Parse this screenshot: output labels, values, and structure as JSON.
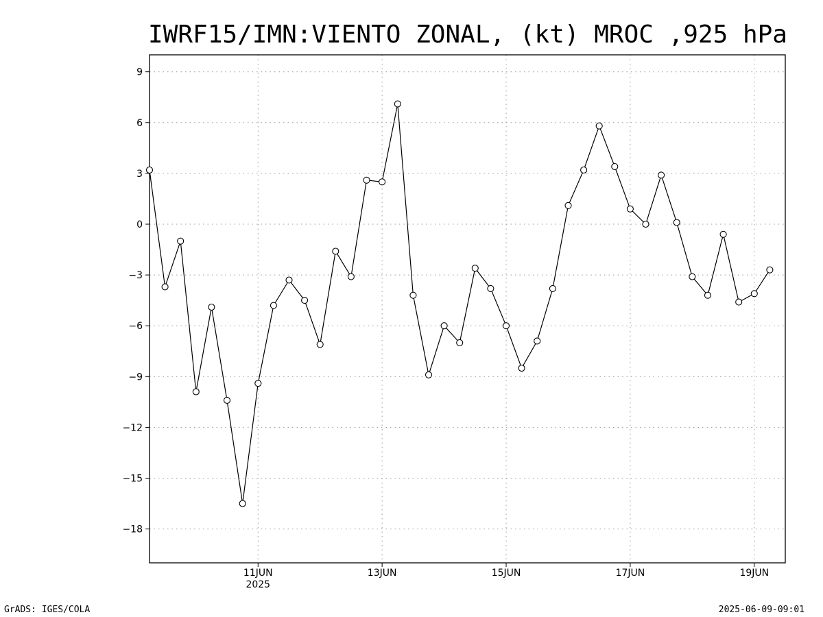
{
  "chart_data": {
    "type": "line",
    "title": "IWRF15/IMN:VIENTO ZONAL, (kt) MROC ,925 hPa",
    "xlabel": "",
    "ylabel": "",
    "x_unit": "hours since 2025-06-09 06:00",
    "x_start": "2025-06-09 06:00",
    "x_step_hours": 6,
    "xlim": [
      0,
      246
    ],
    "ylim": [
      -20,
      10
    ],
    "y_ticks": [
      9,
      6,
      3,
      0,
      -3,
      -6,
      -9,
      -12,
      -15,
      -18
    ],
    "x_ticks": [
      {
        "x": 42,
        "label": "11JUN",
        "sublabel": "2025"
      },
      {
        "x": 90,
        "label": "13JUN",
        "sublabel": ""
      },
      {
        "x": 138,
        "label": "15JUN",
        "sublabel": ""
      },
      {
        "x": 186,
        "label": "17JUN",
        "sublabel": ""
      },
      {
        "x": 234,
        "label": "19JUN",
        "sublabel": ""
      }
    ],
    "grid": true,
    "marker": "open-circle",
    "series": [
      {
        "values": [
          3.2,
          -3.7,
          -1.0,
          -9.9,
          -4.9,
          -10.4,
          -16.5,
          -9.4,
          -4.8,
          -3.3,
          -4.5,
          -7.1,
          -1.6,
          -3.1,
          2.6,
          2.5,
          7.1,
          -4.2,
          -8.9,
          -6.0,
          -7.0,
          -2.6,
          -3.8,
          -6.0,
          -8.5,
          -6.9,
          -3.8,
          1.1,
          3.2,
          5.8,
          3.4,
          0.9,
          0.0,
          2.9,
          0.1,
          -3.1,
          -4.2,
          -0.6,
          -4.6,
          -4.1,
          -2.7
        ]
      }
    ]
  },
  "footer": {
    "left": "GrADS: IGES/COLA",
    "right": "2025-06-09-09:01"
  }
}
